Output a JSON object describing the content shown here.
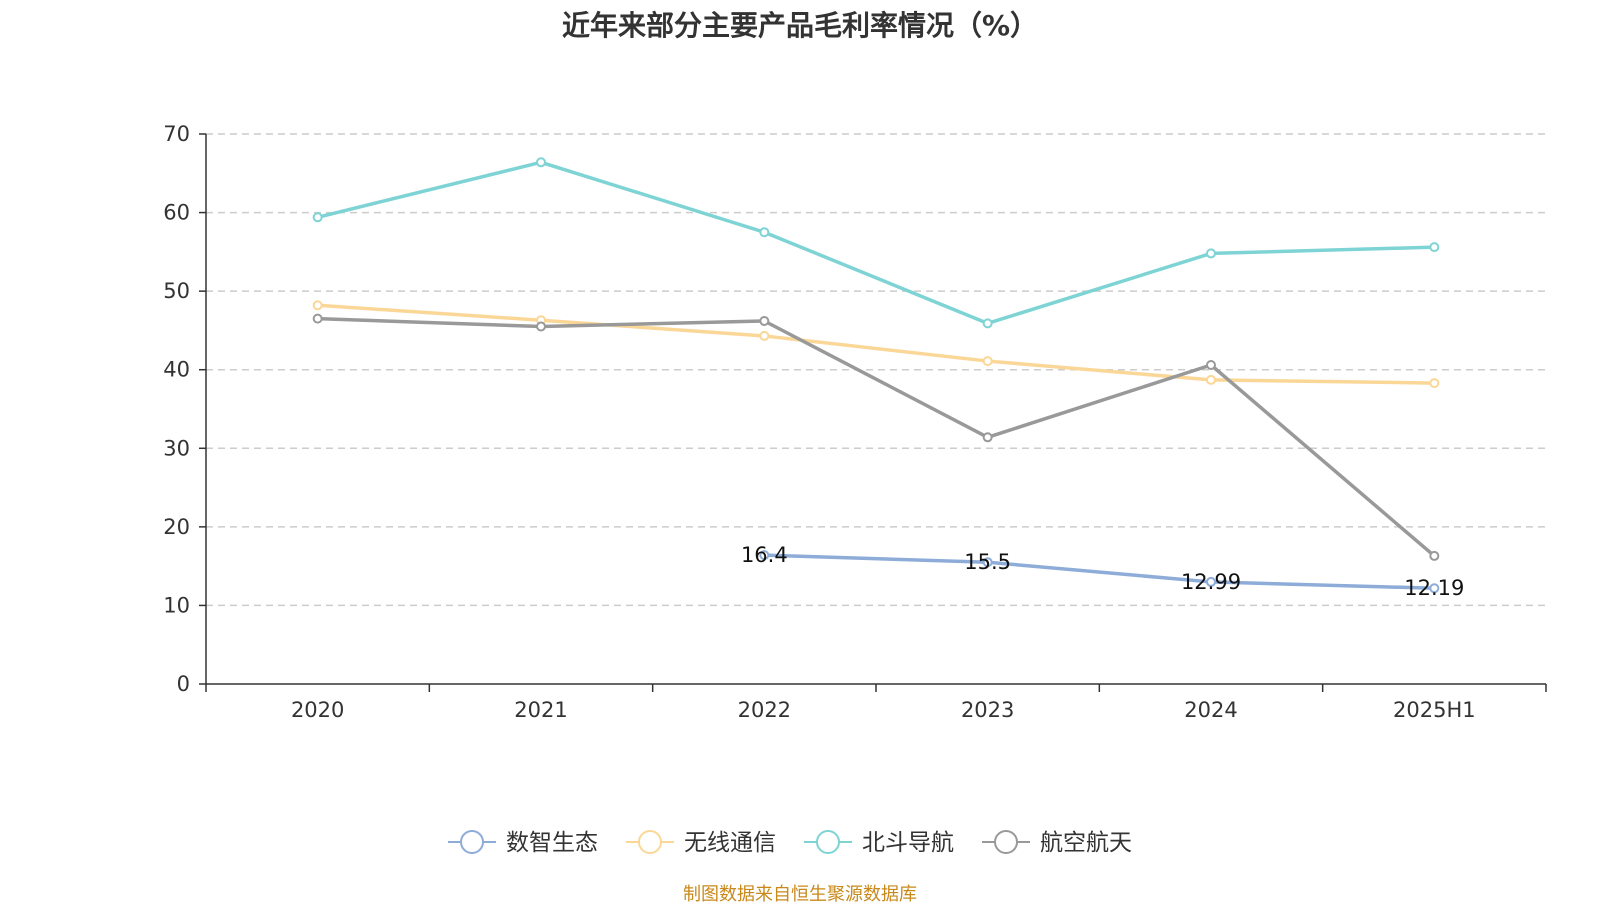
{
  "chart_data": {
    "type": "line",
    "title": "近年来部分主要产品毛利率情况（%）",
    "categories": [
      "2020",
      "2021",
      "2022",
      "2023",
      "2024",
      "2025H1"
    ],
    "ylim": [
      0,
      70
    ],
    "yticks": [
      0,
      10,
      20,
      30,
      40,
      50,
      60,
      70
    ],
    "grid": true,
    "legend_position": "bottom",
    "series": [
      {
        "name": "数智生态",
        "color": "#8eacd8",
        "values": [
          null,
          null,
          16.4,
          15.5,
          12.99,
          12.19
        ],
        "data_labels": [
          null,
          null,
          "16.4",
          "15.5",
          "12.99",
          "12.19"
        ]
      },
      {
        "name": "无线通信",
        "color": "#fbd797",
        "values": [
          48.2,
          46.3,
          44.3,
          41.1,
          38.7,
          38.3
        ]
      },
      {
        "name": "北斗导航",
        "color": "#7ed3d5",
        "values": [
          59.4,
          66.4,
          57.5,
          45.9,
          54.8,
          55.6
        ]
      },
      {
        "name": "航空航天",
        "color": "#999999",
        "values": [
          46.5,
          45.5,
          46.2,
          31.4,
          40.6,
          16.3
        ]
      }
    ]
  },
  "source_note": "制图数据来自恒生聚源数据库"
}
